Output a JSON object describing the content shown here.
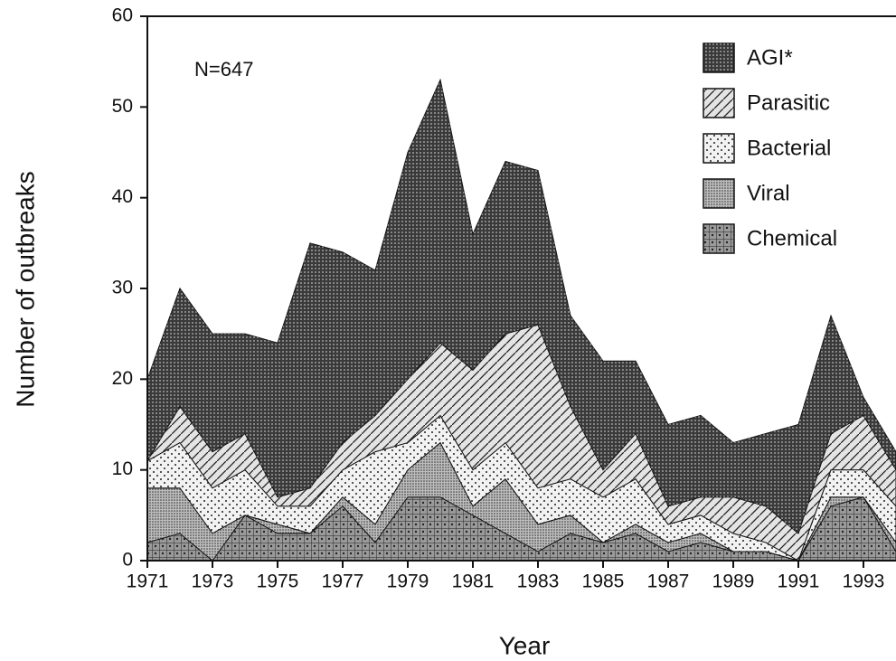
{
  "chart_data": {
    "type": "stacked-area",
    "annotation": "N=647",
    "x_label": "Year",
    "y_label": "Number of outbreaks",
    "x": [
      1971,
      1972,
      1973,
      1974,
      1975,
      1976,
      1977,
      1978,
      1979,
      1980,
      1981,
      1982,
      1983,
      1984,
      1985,
      1986,
      1987,
      1988,
      1989,
      1990,
      1991,
      1992,
      1993,
      1994
    ],
    "series": [
      {
        "name": "AGI*",
        "color": "#3a3a3a",
        "values": [
          9,
          13,
          13,
          11,
          17,
          27,
          21,
          16,
          25,
          29,
          15,
          19,
          17,
          10,
          12,
          8,
          9,
          9,
          6,
          8,
          12,
          13,
          2,
          2
        ]
      },
      {
        "name": "Parasitic",
        "color": "#e4e4e4",
        "values": [
          0,
          4,
          4,
          4,
          1,
          2,
          3,
          4,
          7,
          8,
          11,
          12,
          18,
          8,
          3,
          5,
          2,
          2,
          4,
          4,
          3,
          4,
          6,
          4
        ]
      },
      {
        "name": "Bacterial",
        "color": "#f2f2f2",
        "values": [
          3,
          5,
          5,
          5,
          2,
          3,
          3,
          8,
          3,
          3,
          4,
          4,
          4,
          4,
          5,
          5,
          2,
          2,
          2,
          1,
          0,
          3,
          3,
          4
        ]
      },
      {
        "name": "Viral",
        "color": "#bdbdbd",
        "values": [
          6,
          5,
          3,
          0,
          1,
          0,
          1,
          2,
          3,
          6,
          1,
          6,
          3,
          2,
          0,
          1,
          1,
          1,
          0,
          0,
          0,
          1,
          0,
          1
        ]
      },
      {
        "name": "Chemical",
        "color": "#9a9a9a",
        "values": [
          2,
          3,
          0,
          5,
          3,
          3,
          6,
          2,
          7,
          7,
          5,
          3,
          1,
          3,
          2,
          3,
          1,
          2,
          1,
          1,
          0,
          6,
          7,
          1
        ]
      }
    ],
    "xlim": [
      1971,
      1994
    ],
    "xticks": [
      1971,
      1973,
      1975,
      1977,
      1979,
      1981,
      1983,
      1985,
      1987,
      1989,
      1991,
      1993
    ],
    "ylim": [
      0,
      60
    ],
    "yticks": [
      0,
      10,
      20,
      30,
      40,
      50,
      60
    ],
    "legend": "upper right"
  }
}
